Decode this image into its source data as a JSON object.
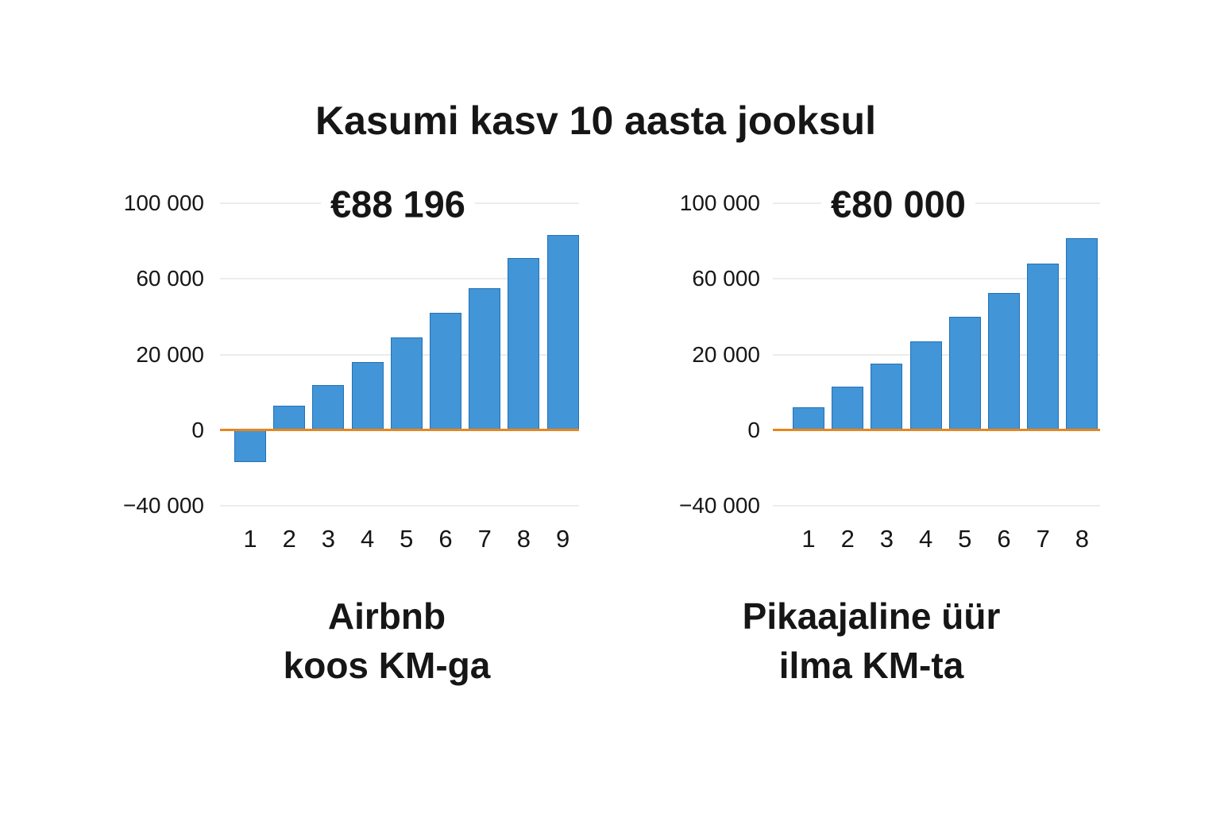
{
  "title": "Kasumi kasv 10 aasta jooksul",
  "colors": {
    "background": "#FFFFFF",
    "text": "#161616",
    "bar_fill": "#4295D6",
    "bar_border": "#2272B8",
    "zero_line": "#E8861C",
    "gridline": "#ECECEC"
  },
  "chart_data": [
    {
      "type": "bar",
      "title": "€88 196",
      "caption": [
        "Airbnb",
        "koos KM-ga"
      ],
      "xlabel": "",
      "ylabel": "",
      "categories": [
        "1",
        "2",
        "3",
        "4",
        "5",
        "6",
        "7",
        "8",
        "9"
      ],
      "values": [
        -17000,
        6500,
        12000,
        18000,
        29000,
        42000,
        55000,
        71000,
        83000
      ],
      "y_ticks": [
        {
          "value": 100000,
          "label": "100 000"
        },
        {
          "value": 60000,
          "label": "60 000"
        },
        {
          "value": 20000,
          "label": "20 000"
        },
        {
          "value": 0,
          "label": "0"
        },
        {
          "value": -40000,
          "label": "−40 000"
        }
      ],
      "ylim": [
        -40000,
        100000
      ],
      "grid": true,
      "legend": "none",
      "tick_spacing": "equal-pixel",
      "zero_line": true
    },
    {
      "type": "bar",
      "title": "€80 000",
      "caption": [
        "Pikaajaline üür",
        "ilma KM-ta"
      ],
      "xlabel": "",
      "ylabel": "",
      "categories": [
        "1",
        "2",
        "3",
        "4",
        "5",
        "6",
        "7",
        "8"
      ],
      "values": [
        6000,
        11500,
        17500,
        27000,
        40000,
        52500,
        68000,
        81500
      ],
      "y_ticks": [
        {
          "value": 100000,
          "label": "100 000"
        },
        {
          "value": 60000,
          "label": "60 000"
        },
        {
          "value": 20000,
          "label": "20 000"
        },
        {
          "value": 0,
          "label": "0"
        },
        {
          "value": -40000,
          "label": "−40 000"
        }
      ],
      "ylim": [
        -40000,
        100000
      ],
      "grid": true,
      "legend": "none",
      "tick_spacing": "equal-pixel",
      "zero_line": true
    }
  ]
}
